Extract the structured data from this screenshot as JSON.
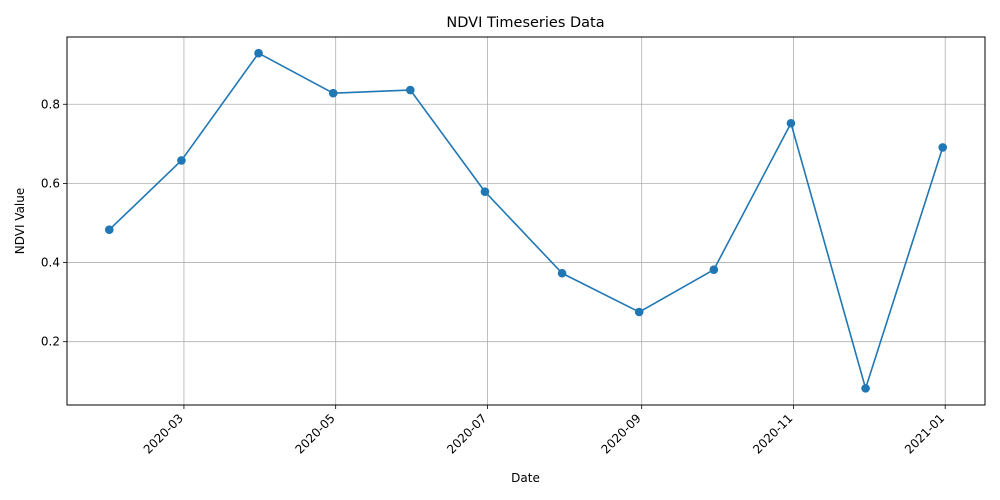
{
  "chart_data": {
    "type": "line",
    "title": "NDVI Timeseries Data",
    "xlabel": "Date",
    "ylabel": "NDVI Value",
    "grid": true,
    "line_color": "#1f77b4",
    "grid_color": "#b0b0b0",
    "xlim": [
      "2020-01-14",
      "2021-01-17"
    ],
    "ylim": [
      0.04,
      0.97
    ],
    "x_ticks": [
      "2020-03-01",
      "2020-05-01",
      "2020-07-01",
      "2020-09-01",
      "2020-11-01",
      "2021-01-01"
    ],
    "x_tick_labels": [
      "2020-03",
      "2020-05",
      "2020-07",
      "2020-09",
      "2020-11",
      "2021-01"
    ],
    "y_ticks": [
      0.2,
      0.4,
      0.6,
      0.8
    ],
    "y_tick_labels": [
      "0.2",
      "0.4",
      "0.6",
      "0.8"
    ],
    "series": [
      {
        "x": [
          "2020-01-31",
          "2020-02-29",
          "2020-03-31",
          "2020-04-30",
          "2020-05-31",
          "2020-06-30",
          "2020-07-31",
          "2020-08-31",
          "2020-09-30",
          "2020-10-31",
          "2020-11-30",
          "2020-12-31"
        ],
        "values": [
          0.483,
          0.658,
          0.929,
          0.828,
          0.836,
          0.579,
          0.373,
          0.275,
          0.382,
          0.752,
          0.082,
          0.691
        ]
      }
    ]
  }
}
